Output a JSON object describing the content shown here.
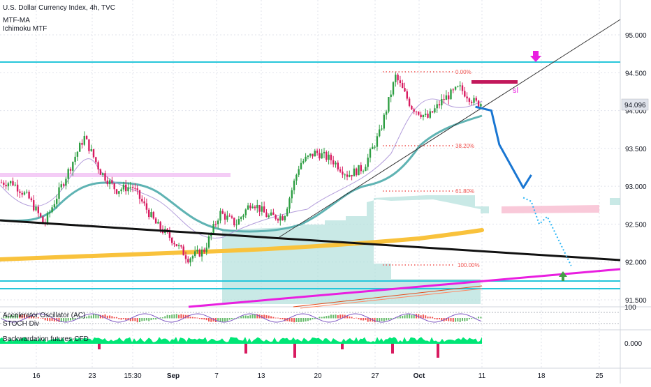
{
  "header": {
    "title": "U.S. Dollar Currency Index, 4h, TVC",
    "indicators": [
      "MTF-MA",
      "Ichimoku MTF"
    ]
  },
  "sub_panes": {
    "pane1_labels": [
      "Accelerator Oscillator (AC)",
      "STOCH Div"
    ],
    "pane1_axis_label": "100",
    "pane2_label": "Backwardation futures-CFD",
    "pane2_axis_label": "0.000"
  },
  "price_badge": "94.096",
  "annotations": {
    "fib_0": "0.00%",
    "fib_382": "38.20%",
    "fib_618": "61.80%",
    "fib_100": "100.00%",
    "sl_label": "sl"
  },
  "colors": {
    "up": "#26a69a",
    "down": "#ef5350",
    "candle_up": "#2e9e43",
    "candle_down": "#d81b60",
    "cyan_level": "#26c6da",
    "trendline_black": "#111111",
    "ma_long": "#f9c23c",
    "ma_mid": "#5fb3b3",
    "cloud": "#b2dfdb",
    "magenta": "#e91ee0",
    "forecast": "#1976d2",
    "sl_bar": "#c2185b",
    "fib_dots": "#ef5350"
  },
  "chart_data": {
    "type": "candlestick",
    "title": "U.S. Dollar Currency Index, 4h, TVC",
    "y_axis_ticks": [
      95.0,
      94.5,
      94.0,
      93.5,
      93.0,
      92.5,
      92.0,
      91.5
    ],
    "x_axis_ticks": [
      "16",
      "23",
      "15:30",
      "Sep",
      "7",
      "13",
      "20",
      "27",
      "Oct",
      "11",
      "18",
      "25"
    ],
    "ylim": [
      91.4,
      95.4
    ],
    "last_price": 94.096,
    "horizontal_levels": [
      94.65,
      91.75,
      91.65
    ],
    "fib_levels": [
      {
        "label": "0.00%",
        "value": 94.5
      },
      {
        "label": "38.20%",
        "value": 93.58
      },
      {
        "label": "61.80%",
        "value": 92.92
      },
      {
        "label": "100.00%",
        "value": 91.96
      }
    ],
    "price_path": [
      {
        "t": "Aug 13",
        "v": 93.05
      },
      {
        "t": "Aug 15",
        "v": 92.85
      },
      {
        "t": "Aug 17",
        "v": 92.5
      },
      {
        "t": "Aug 20",
        "v": 93.2
      },
      {
        "t": "Aug 22",
        "v": 93.65
      },
      {
        "t": "Aug 24",
        "v": 93.2
      },
      {
        "t": "Aug 26",
        "v": 92.95
      },
      {
        "t": "Aug 28",
        "v": 93.0
      },
      {
        "t": "Aug 31",
        "v": 92.5
      },
      {
        "t": "Sep 2",
        "v": 92.3
      },
      {
        "t": "Sep 4",
        "v": 92.05
      },
      {
        "t": "Sep 6",
        "v": 92.15
      },
      {
        "t": "Sep 8",
        "v": 92.65
      },
      {
        "t": "Sep 10",
        "v": 92.5
      },
      {
        "t": "Sep 12",
        "v": 92.8
      },
      {
        "t": "Sep 14",
        "v": 92.6
      },
      {
        "t": "Sep 16",
        "v": 92.6
      },
      {
        "t": "Sep 18",
        "v": 93.3
      },
      {
        "t": "Sep 20",
        "v": 93.45
      },
      {
        "t": "Sep 22",
        "v": 93.35
      },
      {
        "t": "Sep 24",
        "v": 93.15
      },
      {
        "t": "Sep 26",
        "v": 93.25
      },
      {
        "t": "Sep 28",
        "v": 93.7
      },
      {
        "t": "Sep 30",
        "v": 94.45
      },
      {
        "t": "Oct 2",
        "v": 94.05
      },
      {
        "t": "Oct 4",
        "v": 93.9
      },
      {
        "t": "Oct 6",
        "v": 94.15
      },
      {
        "t": "Oct 8",
        "v": 94.3
      },
      {
        "t": "Oct 10",
        "v": 94.1
      }
    ],
    "forecast_path": [
      {
        "t": "Oct 10",
        "v": 94.05
      },
      {
        "t": "Oct 12",
        "v": 94.0
      },
      {
        "t": "Oct 13",
        "v": 93.55
      },
      {
        "t": "Oct 16",
        "v": 92.98
      },
      {
        "t": "Oct 17",
        "v": 93.15
      }
    ],
    "forecast_dotted_path": [
      {
        "t": "Oct 16",
        "v": 92.85
      },
      {
        "t": "Oct 17",
        "v": 92.8
      },
      {
        "t": "Oct 18",
        "v": 92.5
      },
      {
        "t": "Oct 19",
        "v": 92.6
      },
      {
        "t": "Oct 22",
        "v": 91.95
      }
    ],
    "legend": [
      "U.S. Dollar Currency Index, 4h, TVC",
      "MTF-MA",
      "Ichimoku MTF"
    ]
  }
}
